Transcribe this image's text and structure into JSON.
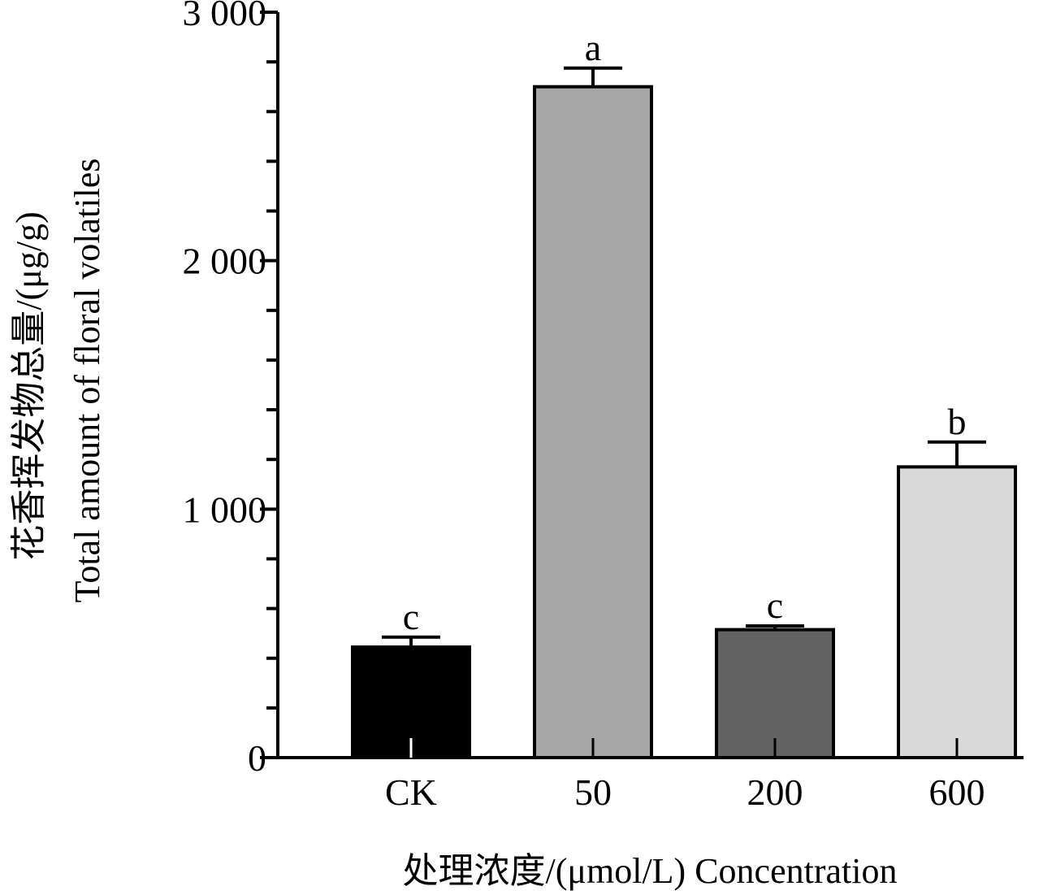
{
  "chart_data": {
    "type": "bar",
    "categories": [
      "CK",
      "50",
      "200",
      "600"
    ],
    "values": [
      445,
      2700,
      515,
      1170
    ],
    "errors": [
      40,
      75,
      15,
      100
    ],
    "significance": [
      "c",
      "a",
      "c",
      "b"
    ],
    "colors": [
      "#000000",
      "#a6a6a6",
      "#636363",
      "#d9d9d9"
    ],
    "ylim": [
      0,
      3000
    ],
    "yticks": [
      {
        "value": 0,
        "label": "0"
      },
      {
        "value": 1000,
        "label": "1 000"
      },
      {
        "value": 2000,
        "label": "2 000"
      },
      {
        "value": 3000,
        "label": "3 000"
      }
    ],
    "yminor_step": 200,
    "ylabel_cn": "花香挥发物总量/(μg/g)",
    "ylabel_en": "Total amount of floral volatiles",
    "xlabel": "处理浓度/(μmol/L)  Concentration",
    "grid": false,
    "legend": "none"
  }
}
